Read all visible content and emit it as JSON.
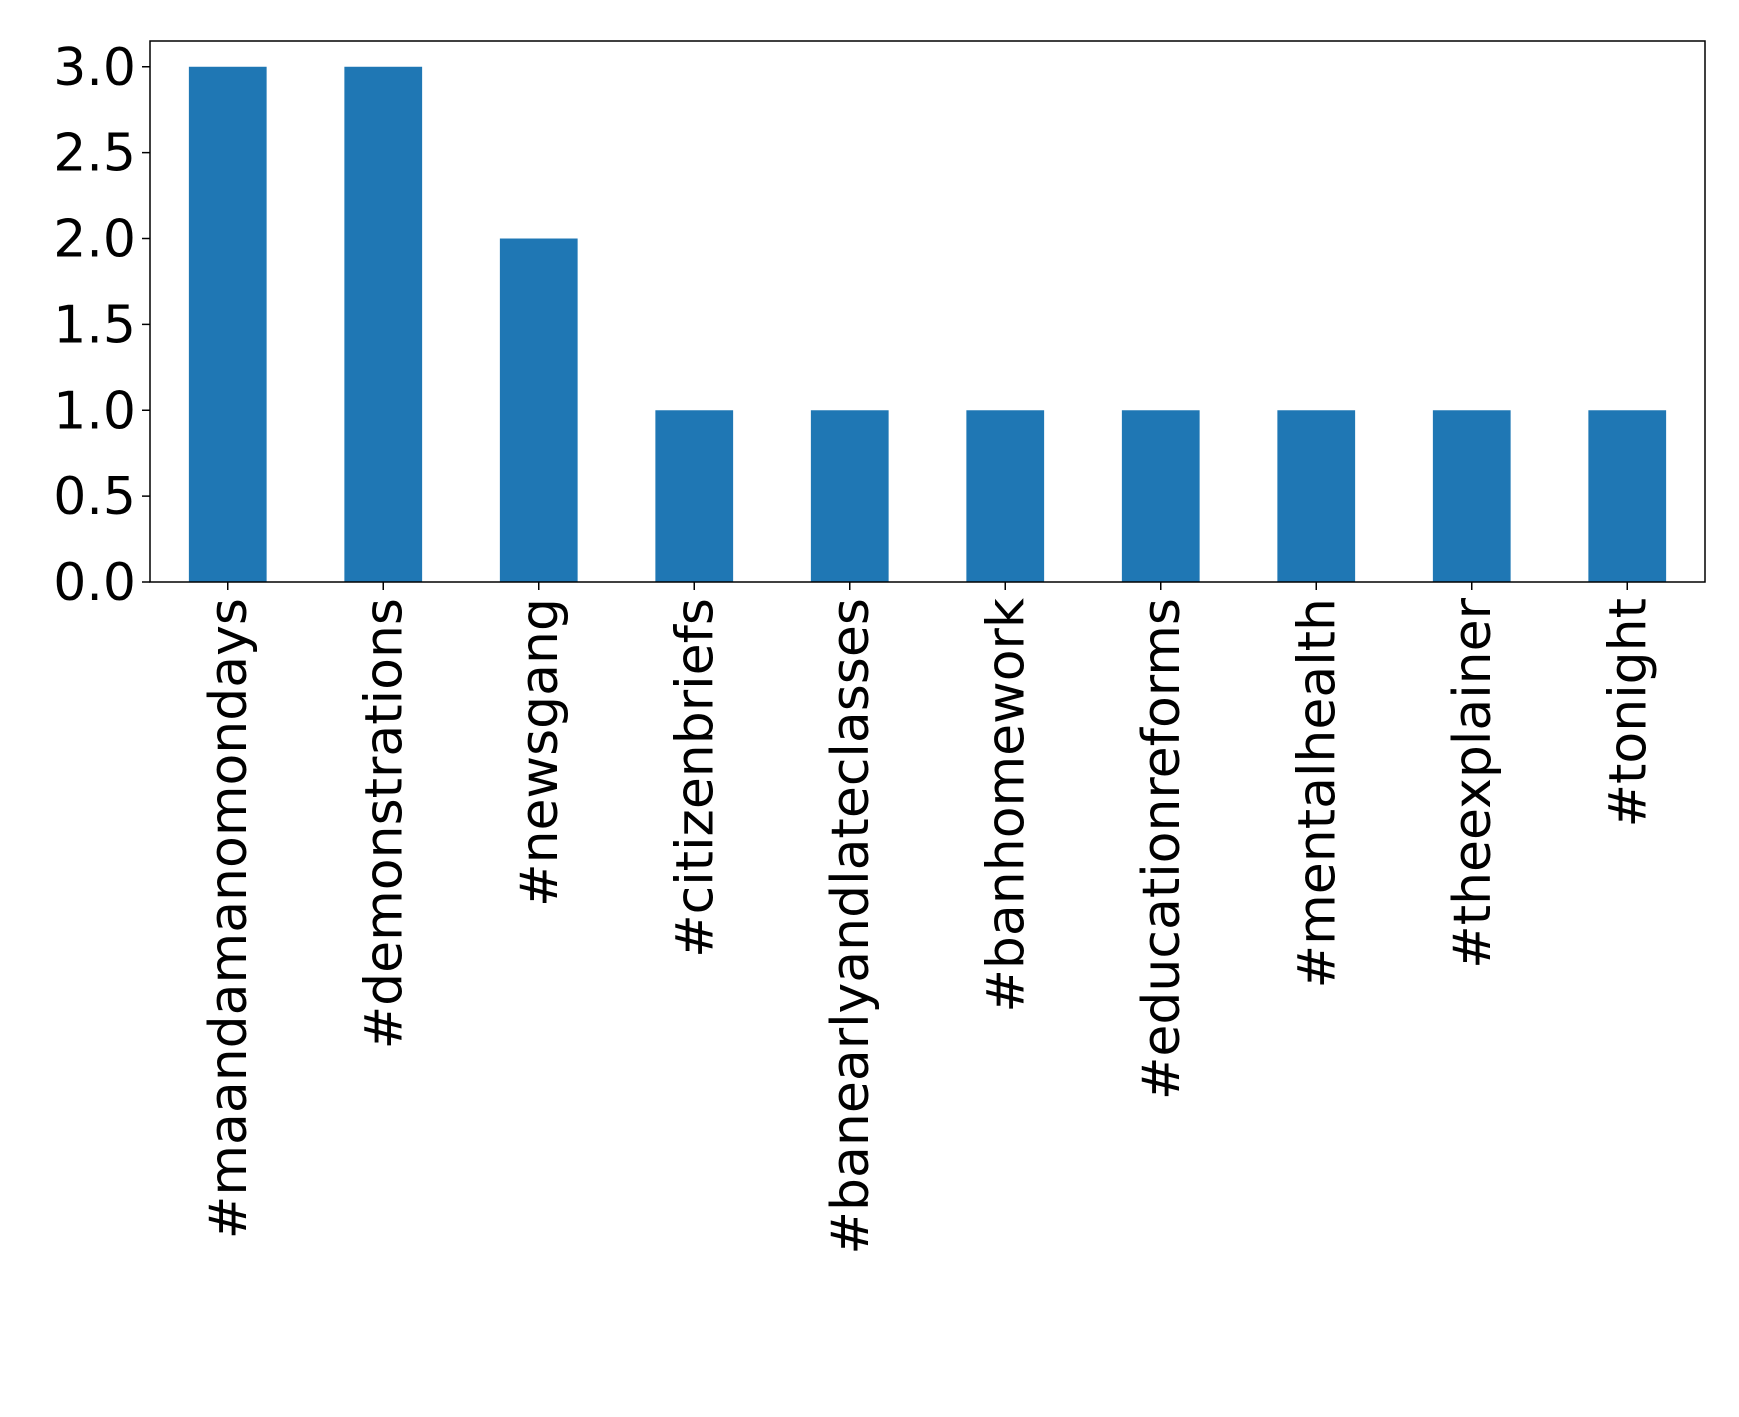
{
  "chart_data": {
    "type": "bar",
    "categories": [
      "#maandamanomondays",
      "#demonstrations",
      "#newsgang",
      "#citizenbriefs",
      "#banearlyandlateclasses",
      "#banhomework",
      "#educationreforms",
      "#mentalhealth",
      "#theexplainer",
      "#tonight"
    ],
    "values": [
      3,
      3,
      2,
      1,
      1,
      1,
      1,
      1,
      1,
      1
    ],
    "yticks": [
      "0.0",
      "0.5",
      "1.0",
      "1.5",
      "2.0",
      "2.5",
      "3.0"
    ],
    "ylim": [
      0,
      3.15
    ],
    "bar_color": "#1f77b4",
    "grid": false,
    "legend": false,
    "title": "",
    "xlabel": "",
    "ylabel": ""
  }
}
